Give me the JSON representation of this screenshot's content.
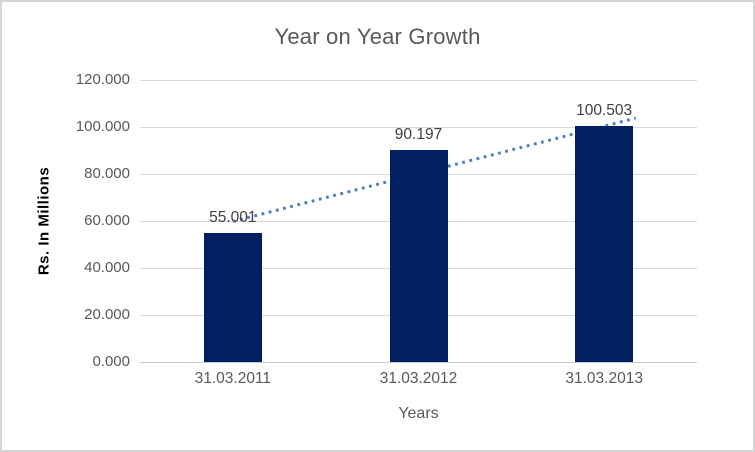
{
  "chart_data": {
    "type": "bar",
    "title": "Year on Year Growth",
    "categories": [
      "31.03.2011",
      "31.03.2012",
      "31.03.2013"
    ],
    "values": [
      55.001,
      90.197,
      100.503
    ],
    "data_labels": [
      "55.001",
      "90.197",
      "100.503"
    ],
    "xlabel": "Years",
    "ylabel": "Rs. In Millions",
    "ylim": [
      0,
      120
    ],
    "ytick_labels": [
      "0.000",
      "20.000",
      "40.000",
      "60.000",
      "80.000",
      "100.000",
      "120.000"
    ],
    "ytick_values": [
      0,
      20,
      40,
      60,
      80,
      100,
      120
    ],
    "grid": true,
    "legend_position": "none",
    "trendline": {
      "type": "linear",
      "style": "dotted",
      "start_value": 59.8,
      "end_value": 103.8,
      "forward_extension_slots": 0.17
    },
    "colors": {
      "bar_fill": "#002060",
      "trendline": "#4d7ec4",
      "gridline": "#d9d9d9",
      "axis_line": "#c9c9c9",
      "title_text": "#595959",
      "tick_text": "#595959",
      "data_label_text": "#3f3f3f",
      "x_axis_title_text": "#595959",
      "y_axis_title_text": "#000000",
      "chart_border": "#d5d5d5",
      "background": "#ffffff"
    }
  }
}
